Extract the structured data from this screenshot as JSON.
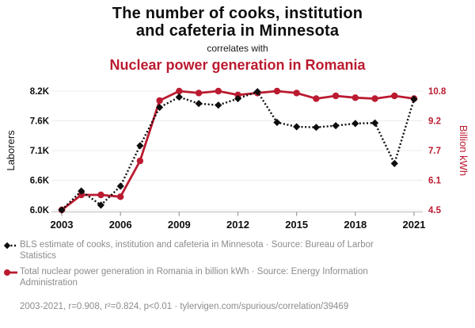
{
  "title": {
    "line1": "The number of cooks, institution",
    "line2": "and cafeteria in Minnesota",
    "connector": "correlates with",
    "subtitle": "Nuclear power generation in Romania"
  },
  "colors": {
    "red": "#bb1b30",
    "black": "#0e0e0e",
    "gridline": "#ececec",
    "axis_line": "#bbbbbb",
    "tick_mark": "#999999",
    "legend_text": "#8c8c8c"
  },
  "axes": {
    "left_label": "Laborers",
    "right_label": "Billion kWh",
    "left_ticks": [
      "8.2K",
      "7.6K",
      "7.1K",
      "6.6K",
      "6.0K"
    ],
    "right_ticks": [
      "10.8",
      "9.2",
      "7.7",
      "6.1",
      "4.5"
    ],
    "x_ticks": [
      "2003",
      "2006",
      "2009",
      "2012",
      "2015",
      "2018",
      "2021"
    ]
  },
  "legend": {
    "items": [
      {
        "marker": "black-diamond-dotted-line",
        "label": "BLS estimate of cooks, institution and cafeteria in Minnesota · Source: Bureau of Larbor Statistics"
      },
      {
        "marker": "red-circle-solid-line",
        "label": "Total nuclear power generation in Romania in billion kWh · Source: Energy Information Administration"
      }
    ]
  },
  "footer": "2003-2021, r=0.908, r²=0.824, p<0.01 · tylervigen.com/spurious/correlation/39469",
  "chart_data": {
    "type": "line",
    "x": [
      2003,
      2004,
      2005,
      2006,
      2007,
      2008,
      2009,
      2010,
      2011,
      2012,
      2013,
      2014,
      2015,
      2016,
      2017,
      2018,
      2019,
      2020,
      2021
    ],
    "series": [
      {
        "name": "Cooks, institution and cafeteria in Minnesota (laborers)",
        "axis": "left",
        "style": "dotted-black-diamond",
        "values": [
          6000,
          6350,
          6090,
          6440,
          7190,
          7900,
          8090,
          7970,
          7940,
          8060,
          8190,
          7620,
          7540,
          7530,
          7560,
          7600,
          7610,
          6860,
          8050
        ]
      },
      {
        "name": "Nuclear power generation in Romania (billion kWh)",
        "axis": "right",
        "style": "solid-red-circle",
        "values": [
          4.5,
          5.3,
          5.3,
          5.2,
          7.1,
          10.3,
          10.8,
          10.7,
          10.8,
          10.6,
          10.7,
          10.8,
          10.7,
          10.4,
          10.55,
          10.45,
          10.4,
          10.55,
          10.4
        ]
      }
    ],
    "ylim_left": [
      6000,
      8200
    ],
    "ylim_right": [
      4.5,
      10.8
    ],
    "xlabel": "",
    "ylabel_left": "Laborers",
    "ylabel_right": "Billion kWh",
    "grid": true,
    "legend_position": "bottom-left"
  }
}
